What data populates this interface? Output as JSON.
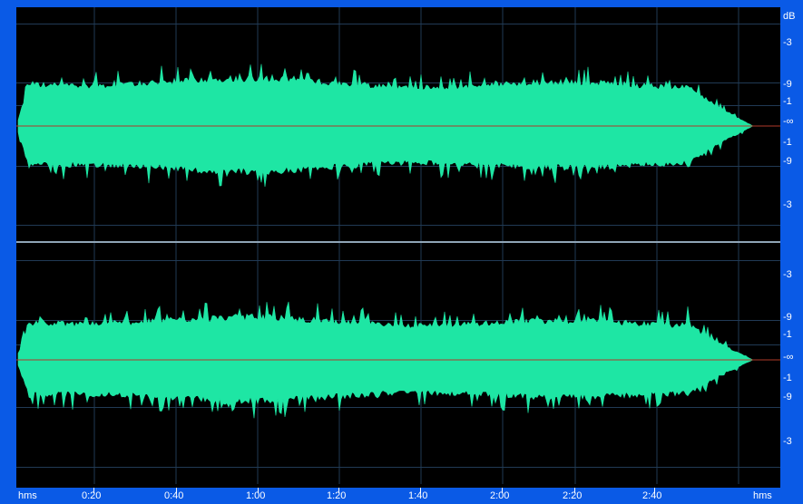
{
  "waveform": {
    "colors": {
      "wave": "#1ee6a4",
      "background": "#000000",
      "grid": "#213a55",
      "center_line": "#b03a2a",
      "frame": "#0a5ae6"
    },
    "channels": [
      {
        "name": "channel-1",
        "db_labels": [
          "dB",
          "-3",
          "-9",
          "-1",
          "-∞",
          "-1",
          "-9",
          "-3"
        ]
      },
      {
        "name": "channel-2",
        "db_labels": [
          "-3",
          "-9",
          "-1",
          "-∞",
          "-1",
          "-9",
          "-3"
        ]
      }
    ]
  },
  "time_ruler": {
    "start_label": "hms",
    "end_label": "hms",
    "marks": [
      "0:20",
      "0:40",
      "1:00",
      "1:20",
      "1:40",
      "2:00",
      "2:20",
      "2:40"
    ]
  }
}
